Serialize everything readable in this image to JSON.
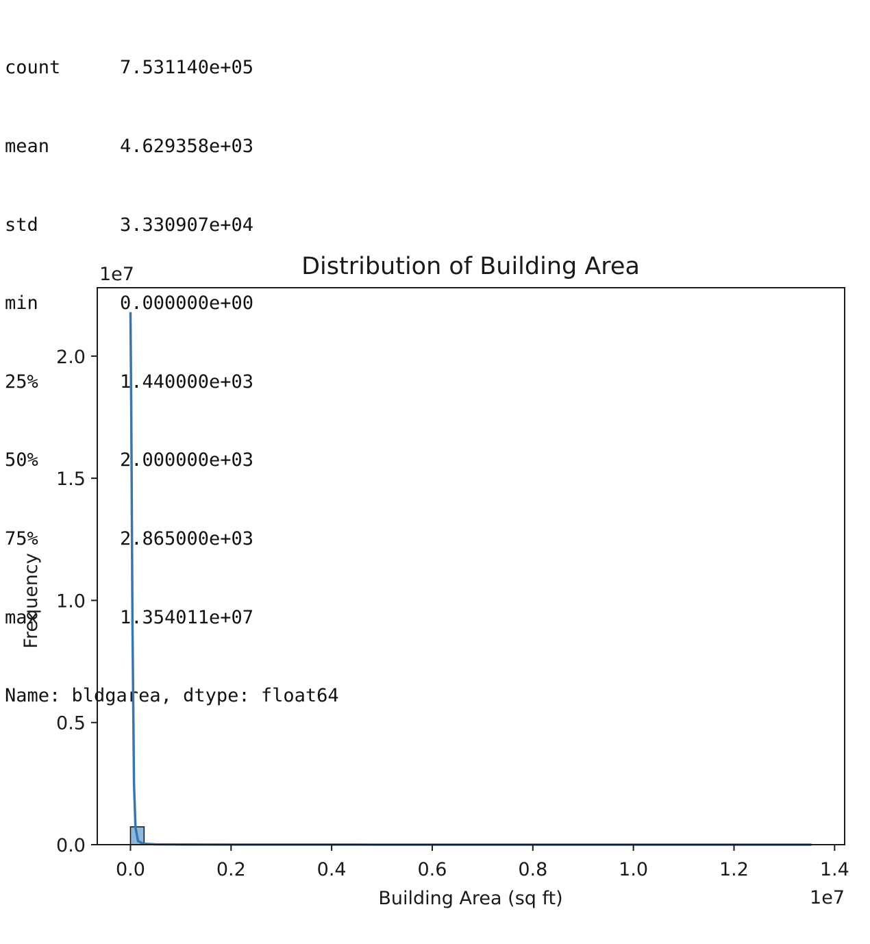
{
  "describe_output": {
    "rows": [
      {
        "key": "count",
        "value": "7.531140e+05"
      },
      {
        "key": "mean",
        "value": "4.629358e+03"
      },
      {
        "key": "std",
        "value": "3.330907e+04"
      },
      {
        "key": "min",
        "value": "0.000000e+00"
      },
      {
        "key": "25%",
        "value": "1.440000e+03"
      },
      {
        "key": "50%",
        "value": "2.000000e+03"
      },
      {
        "key": "75%",
        "value": "2.865000e+03"
      },
      {
        "key": "max",
        "value": "1.354011e+07"
      }
    ],
    "name_line": "Name: bldgarea, dtype: float64"
  },
  "chart_data": {
    "type": "bar",
    "title": "Distribution of Building Area",
    "xlabel": "Building Area (sq ft)",
    "ylabel": "Frequency",
    "x_offset_label": "1e7",
    "y_offset_label": "1e7",
    "xlim": [
      -660000,
      14200000
    ],
    "ylim": [
      0,
      22800000.0
    ],
    "x_ticks": [
      0,
      2000000,
      4000000,
      6000000,
      8000000,
      10000000,
      12000000,
      14000000
    ],
    "x_tick_labels": [
      "0.0",
      "0.2",
      "0.4",
      "0.6",
      "0.8",
      "1.0",
      "1.2",
      "1.4"
    ],
    "y_ticks": [
      0,
      5000000,
      10000000,
      15000000,
      20000000
    ],
    "y_tick_labels": [
      "0.0",
      "0.5",
      "1.0",
      "1.5",
      "2.0"
    ],
    "bins": [
      {
        "x0": 0,
        "x1": 270800,
        "value": 730000
      },
      {
        "x0": 270800,
        "x1": 541600,
        "value": 12000
      },
      {
        "x0": 541600,
        "x1": 812400,
        "value": 3000
      },
      {
        "x0": 812400,
        "x1": 1083200,
        "value": 1500
      },
      {
        "x0": 1083200,
        "x1": 1354000,
        "value": 800
      }
    ],
    "kde": {
      "x": [
        0,
        15000,
        40000,
        70000,
        100000,
        150000,
        250000,
        500000,
        1000000,
        2000000,
        5000000,
        10000000,
        13540110
      ],
      "y": [
        21800000,
        18000000,
        9000000,
        2500000,
        700000,
        150000,
        40000,
        15000,
        8000,
        4000,
        1500,
        500,
        100
      ]
    },
    "colors": {
      "bar_fill": "#8fb7dc",
      "bar_edge": "#1a1a1a",
      "kde_line": "#3b75af",
      "axes": "#1a1a1a"
    },
    "grid": false
  }
}
